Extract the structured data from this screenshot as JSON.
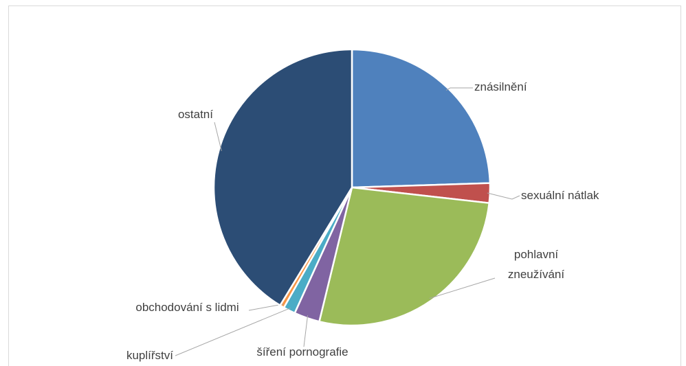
{
  "chart_data": {
    "type": "pie",
    "categories": [
      "znásilnění",
      "sexuální nátlak",
      "pohlavní zneužívání",
      "šíření pornografie",
      "kuplířství",
      "obchodování s lidmi",
      "ostatní"
    ],
    "values": [
      24.5,
      2.3,
      27,
      3,
      1.4,
      0.5,
      41.3
    ],
    "colors": [
      "#4f81bd",
      "#c0504d",
      "#9bbb59",
      "#8064a2",
      "#4bacc6",
      "#f79646",
      "#2c4d75"
    ]
  }
}
